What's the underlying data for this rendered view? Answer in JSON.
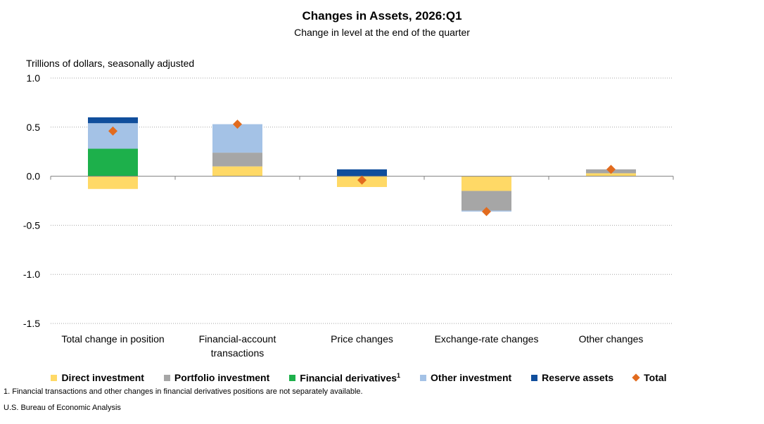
{
  "title": "Changes in Assets, 2026:Q1",
  "subtitle": "Change in level at the end of the quarter",
  "footnote": "1. Financial transactions and other changes  in financial derivatives positions are not separately available.",
  "source": "U.S. Bureau of Economic Analysis",
  "chart_data": {
    "type": "bar",
    "stacked": true,
    "ylabel": "Trillions of dollars, seasonally adjusted",
    "ylim": [
      -1.5,
      1.0
    ],
    "yticks": [
      1.0,
      0.5,
      0.0,
      -0.5,
      -1.0,
      -1.5
    ],
    "ytick_labels": [
      "1.0",
      "0.5",
      "0.0",
      "-0.5",
      "-1.0",
      "-1.5"
    ],
    "grid": true,
    "legend_position": "bottom",
    "categories": [
      [
        "Total change in position"
      ],
      [
        "Financial-account",
        "transactions"
      ],
      [
        "Price changes"
      ],
      [
        "Exchange-rate changes"
      ],
      [
        "Other changes"
      ]
    ],
    "series": [
      {
        "name": "Direct investment",
        "sup": "",
        "color": "#FFD966",
        "values": [
          -0.13,
          0.1,
          -0.11,
          -0.15,
          0.03
        ]
      },
      {
        "name": "Portfolio investment",
        "sup": "",
        "color": "#A6A6A6",
        "values": [
          0.0,
          0.14,
          0.0,
          -0.2,
          0.04
        ]
      },
      {
        "name": "Financial derivatives",
        "sup": "1",
        "color": "#1DB04B",
        "values": [
          0.28,
          0.0,
          0.0,
          0.0,
          0.0
        ]
      },
      {
        "name": "Other investment",
        "sup": "",
        "color": "#A4C2E6",
        "values": [
          0.26,
          0.29,
          0.0,
          -0.01,
          0.0
        ]
      },
      {
        "name": "Reserve assets",
        "sup": "",
        "color": "#104E9C",
        "values": [
          0.06,
          0.0,
          0.07,
          0.0,
          0.0
        ]
      }
    ],
    "total": {
      "name": "Total",
      "color": "#E26B1E",
      "values": [
        0.46,
        0.53,
        -0.04,
        -0.36,
        0.07
      ]
    }
  }
}
